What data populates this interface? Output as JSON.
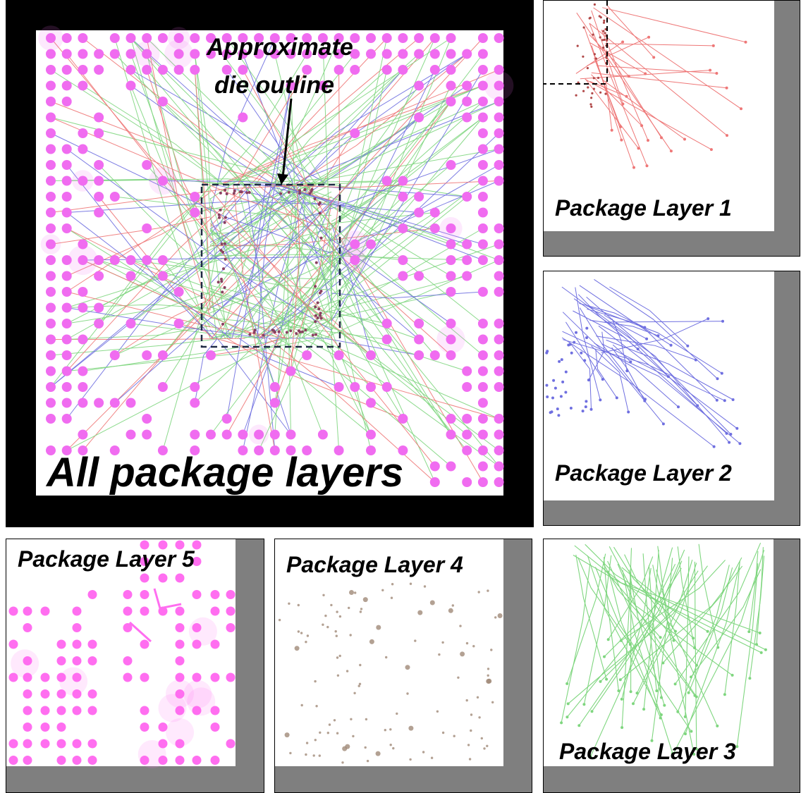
{
  "main": {
    "label": "All package layers",
    "annotation_line1": "Approximate",
    "annotation_line2": "die outline"
  },
  "layers": {
    "layer1": {
      "label": "Package Layer 1",
      "color": "#ee7777"
    },
    "layer2": {
      "label": "Package Layer 2",
      "color": "#6f6fe0"
    },
    "layer3": {
      "label": "Package Layer 3",
      "color": "#7fd67f"
    },
    "layer4": {
      "label": "Package Layer 4",
      "color": "#a08a78"
    },
    "layer5": {
      "label": "Package Layer 5",
      "color": "#ff6ef0"
    }
  },
  "colors": {
    "frame": "#000000",
    "gray_margin": "#7f7f7f",
    "ball": "#f06cf0",
    "die_outline": "#1f2a44"
  }
}
